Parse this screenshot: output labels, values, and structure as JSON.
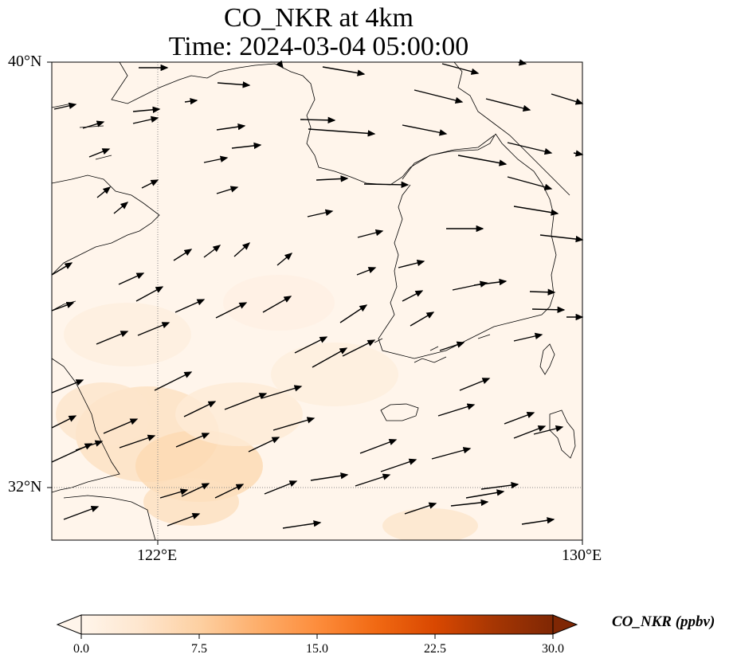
{
  "title": {
    "line1": "CO_NKR at 4km",
    "line2": "Time: 2024-03-04 05:00:00"
  },
  "map": {
    "extent": {
      "lon_min": 120,
      "lon_max": 130,
      "lat_min": 31,
      "lat_max": 40
    },
    "gridlines": {
      "lons": [
        122,
        130
      ],
      "lats": [
        32,
        40
      ],
      "style": "dotted",
      "color": "#888888"
    },
    "lat_labels": [
      "40°N",
      "32°N"
    ],
    "lon_labels": [
      "122°E",
      "130°E"
    ],
    "background_color": "#fff5eb",
    "coastline_color": "#000000"
  },
  "colorbar": {
    "title": "CO_NKR (ppbv)",
    "ticks": [
      "0.0",
      "7.5",
      "15.0",
      "22.5",
      "30.0"
    ],
    "tick_values": [
      0,
      7.5,
      15,
      22.5,
      30
    ],
    "range": [
      0,
      30
    ],
    "colors": [
      "#fff5eb",
      "#fee6ce",
      "#fdd0a2",
      "#fdae6b",
      "#fd8d3c",
      "#f16913",
      "#d94801",
      "#a63603",
      "#7f2704"
    ],
    "extend": "both"
  }
}
